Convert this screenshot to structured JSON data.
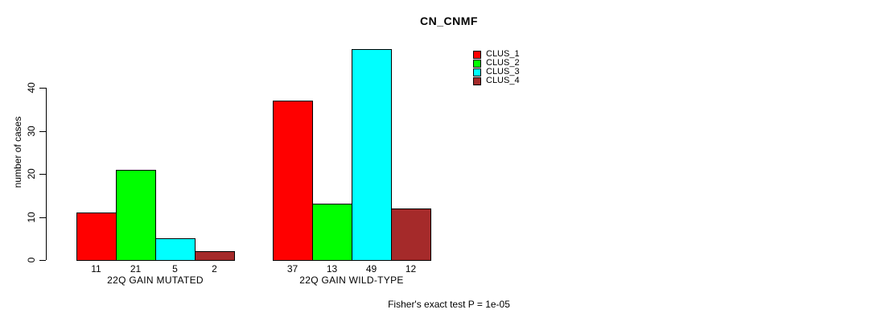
{
  "chart_data": {
    "type": "bar",
    "title": "CN_CNMF",
    "ylabel": "number of cases",
    "xlabel": "",
    "categories": [
      "22Q GAIN MUTATED",
      "22Q GAIN WILD-TYPE"
    ],
    "series": [
      {
        "name": "CLUS_1",
        "color": "#ff0000",
        "values": [
          11,
          37
        ]
      },
      {
        "name": "CLUS_2",
        "color": "#00ff00",
        "values": [
          21,
          13
        ]
      },
      {
        "name": "CLUS_3",
        "color": "#00ffff",
        "values": [
          5,
          49
        ]
      },
      {
        "name": "CLUS_4",
        "color": "#a52a2a",
        "values": [
          2,
          12
        ]
      }
    ],
    "yticks": [
      0,
      10,
      20,
      30,
      40
    ],
    "ylim": [
      0,
      51
    ],
    "grid": false,
    "bar_value_labels_shown": true,
    "legend_position": "right-of-plot-top",
    "footnote": "Fisher's exact test P = 1e-05"
  }
}
